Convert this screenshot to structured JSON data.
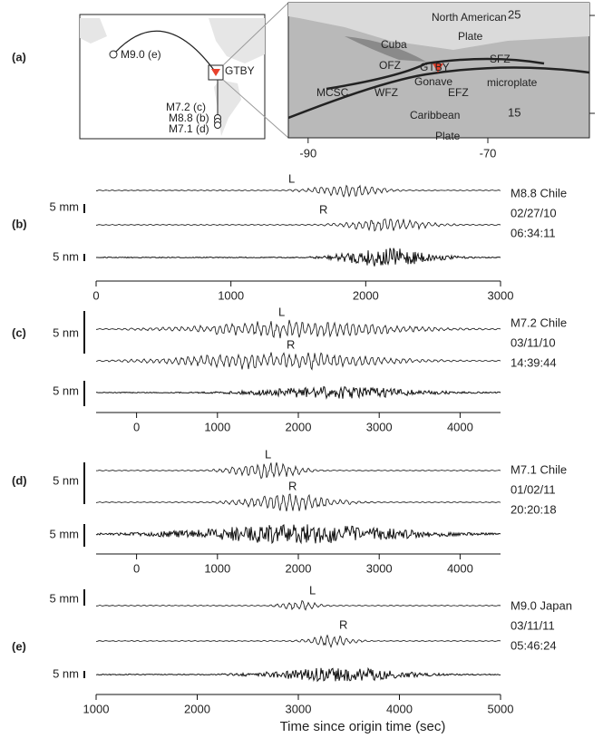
{
  "figure": {
    "panel_a": {
      "label": "(a)",
      "world_map": {
        "station": "GTBY",
        "events": [
          "M9.0 (e)",
          "M7.2 (c)",
          "M8.8 (b)",
          "M7.1 (d)"
        ]
      },
      "inset_map": {
        "labels": [
          "North American",
          "Plate",
          "Cuba",
          "OFZ",
          "GTBY",
          "SFZ",
          "Gonave",
          "microplate",
          "MCSC",
          "WFZ",
          "EFZ",
          "Caribbean",
          "Plate"
        ],
        "xlim": [
          -92.2,
          -58.7
        ],
        "xticks": [
          -90,
          -70
        ],
        "ylim": [
          12.5,
          26.3
        ],
        "yticks": [
          25,
          15
        ]
      }
    },
    "panels": [
      {
        "label": "(b)",
        "scales": [
          "5 mm",
          "5 nm"
        ],
        "markers": [
          "L",
          "R"
        ],
        "event": [
          "M8.8 Chile",
          "02/27/10",
          "06:34:11"
        ],
        "xlim": [
          0,
          3000
        ],
        "xticks": [
          0,
          1000,
          2000,
          3000
        ]
      },
      {
        "label": "(c)",
        "scales": [
          "5 nm",
          "5 nm"
        ],
        "markers": [
          "L",
          "R"
        ],
        "event": [
          "M7.2 Chile",
          "03/11/10",
          "14:39:44"
        ],
        "xlim": [
          -500,
          4500
        ],
        "xticks": [
          0,
          1000,
          2000,
          3000,
          4000
        ]
      },
      {
        "label": "(d)",
        "scales": [
          "5 nm",
          "5 mm"
        ],
        "markers": [
          "L",
          "R"
        ],
        "event": [
          "M7.1 Chile",
          "01/02/11",
          "20:20:18"
        ],
        "xlim": [
          -500,
          4500
        ],
        "xticks": [
          0,
          1000,
          2000,
          3000,
          4000
        ]
      },
      {
        "label": "(e)",
        "scales": [
          "5 mm",
          "5 nm"
        ],
        "markers": [
          "L",
          "R"
        ],
        "event": [
          "M9.0 Japan",
          "03/11/11",
          "05:46:24"
        ],
        "xlim": [
          1000,
          5000
        ],
        "xticks": [
          1000,
          2000,
          3000,
          4000,
          5000
        ]
      }
    ],
    "x_axis_label": "Time since origin time (sec)"
  }
}
